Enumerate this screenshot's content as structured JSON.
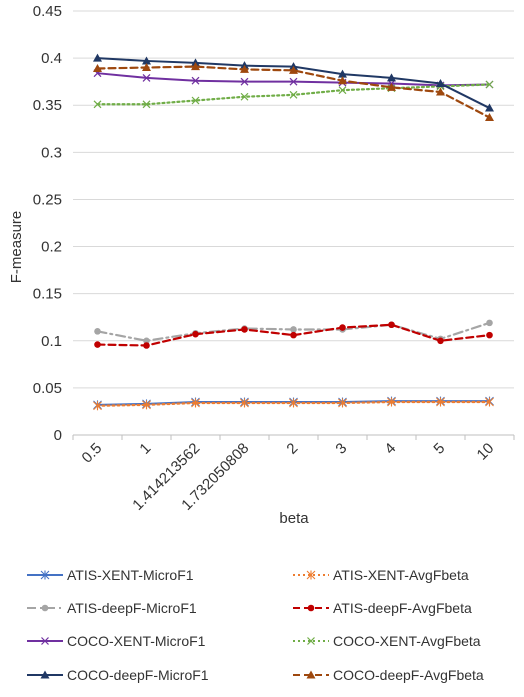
{
  "chart_data": {
    "type": "line",
    "title": "",
    "xlabel": "beta",
    "ylabel": "F-measure",
    "ylim": [
      0,
      0.45
    ],
    "yticks": [
      "0",
      "0.05",
      "0.1",
      "0.15",
      "0.2",
      "0.25",
      "0.3",
      "0.35",
      "0.4",
      "0.45"
    ],
    "grid": true,
    "legend_position": "bottom",
    "categories": [
      "0.5",
      "1",
      "1.414213562",
      "1.732050808",
      "2",
      "3",
      "4",
      "5",
      "10"
    ],
    "series": [
      {
        "name": "ATIS-XENT-MicroF1",
        "color": "#4472C4",
        "dash": "solid",
        "marker": "star",
        "values": [
          0.032,
          0.033,
          0.035,
          0.035,
          0.035,
          0.035,
          0.036,
          0.036,
          0.036
        ]
      },
      {
        "name": "ATIS-XENT-AvgFbeta",
        "color": "#ED7D31",
        "dash": "dot",
        "marker": "star",
        "values": [
          0.031,
          0.032,
          0.034,
          0.034,
          0.034,
          0.034,
          0.035,
          0.035,
          0.035
        ]
      },
      {
        "name": "ATIS-deepF-MicroF1",
        "color": "#A5A5A5",
        "dash": "dashdot",
        "marker": "circle",
        "values": [
          0.11,
          0.1,
          0.108,
          0.113,
          0.112,
          0.112,
          0.117,
          0.102,
          0.119
        ]
      },
      {
        "name": "ATIS-deepF-AvgFbeta",
        "color": "#C00000",
        "dash": "dash",
        "marker": "circle",
        "values": [
          0.096,
          0.095,
          0.107,
          0.112,
          0.106,
          0.114,
          0.117,
          0.1,
          0.106
        ]
      },
      {
        "name": "COCO-XENT-MicroF1",
        "color": "#7030A0",
        "dash": "solid",
        "marker": "x",
        "values": [
          0.384,
          0.379,
          0.376,
          0.375,
          0.375,
          0.374,
          0.373,
          0.371,
          0.372
        ]
      },
      {
        "name": "COCO-XENT-AvgFbeta",
        "color": "#70AD47",
        "dash": "dot",
        "marker": "x",
        "values": [
          0.351,
          0.351,
          0.355,
          0.359,
          0.361,
          0.366,
          0.368,
          0.37,
          0.372
        ]
      },
      {
        "name": "COCO-deepF-MicroF1",
        "color": "#203864",
        "dash": "solid",
        "marker": "triangle",
        "values": [
          0.4,
          0.397,
          0.395,
          0.392,
          0.391,
          0.383,
          0.379,
          0.373,
          0.347
        ]
      },
      {
        "name": "COCO-deepF-AvgFbeta",
        "color": "#9E480E",
        "dash": "dash",
        "marker": "triangle",
        "values": [
          0.389,
          0.39,
          0.391,
          0.388,
          0.387,
          0.376,
          0.369,
          0.364,
          0.337
        ]
      }
    ]
  }
}
